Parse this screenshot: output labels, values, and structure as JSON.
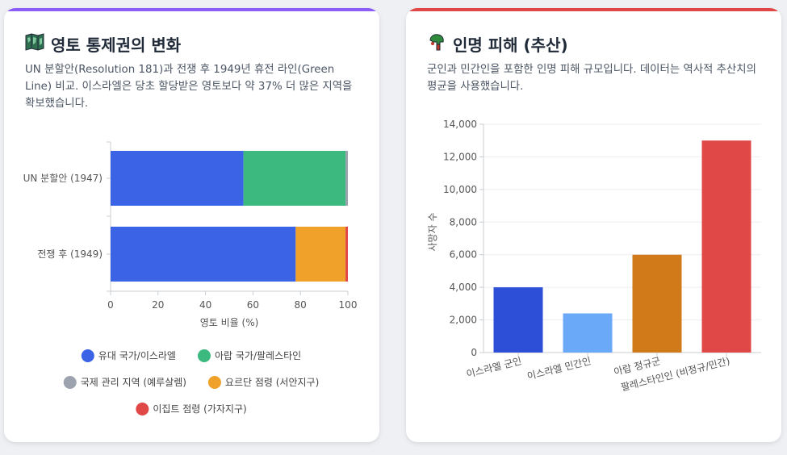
{
  "left_card": {
    "icon": "map-icon",
    "title": "영토 통제권의 변화",
    "description": "UN 분할안(Resolution 181)과 전쟁 후 1949년 휴전 라인(Green Line) 비교. 이스라엘은 당초 할당받은 영토보다 약 37% 더 많은 지역을 확보했습니다."
  },
  "right_card": {
    "icon": "casualty-icon",
    "title": "인명 피해 (추산)",
    "description": "군인과 민간인을 포함한 인명 피해 규모입니다. 데이터는 역사적 추산치의 평균을 사용했습니다."
  },
  "chart_data": [
    {
      "type": "bar",
      "orientation": "horizontal",
      "stacked": true,
      "categories": [
        "UN 분할안 (1947)",
        "전쟁 후 (1949)"
      ],
      "series": [
        {
          "name": "유대 국가/이스라엘",
          "values": [
            56,
            78
          ],
          "color": "#3b63e6"
        },
        {
          "name": "아랍 국가/팔레스타인",
          "values": [
            43,
            0
          ],
          "color": "#3cb97e"
        },
        {
          "name": "국제 관리 지역 (예루살렘)",
          "values": [
            1,
            0
          ],
          "color": "#9ca3af"
        },
        {
          "name": "요르단 점령 (서안지구)",
          "values": [
            0,
            21
          ],
          "color": "#efa12a"
        },
        {
          "name": "이집트 점령 (가자지구)",
          "values": [
            0,
            1
          ],
          "color": "#e04848"
        }
      ],
      "xlabel": "영토 비율 (%)",
      "xlim": [
        0,
        100
      ],
      "xticks": [
        0,
        20,
        40,
        60,
        80,
        100
      ],
      "legend_position": "bottom"
    },
    {
      "type": "bar",
      "categories": [
        "이스라엘 군인",
        "이스라엘 민간인",
        "아랍 정규군",
        "팔레스타인인 (비정규/민간)"
      ],
      "values": [
        4000,
        2400,
        6000,
        13000
      ],
      "colors": [
        "#2d4fd8",
        "#6aa8f8",
        "#d07a1a",
        "#e04848"
      ],
      "ylabel": "사망자 수",
      "ylim": [
        0,
        14000
      ],
      "yticks": [
        "0",
        "2,000",
        "4,000",
        "6,000",
        "8,000",
        "10,000",
        "12,000",
        "14,000"
      ],
      "grid": true
    }
  ]
}
